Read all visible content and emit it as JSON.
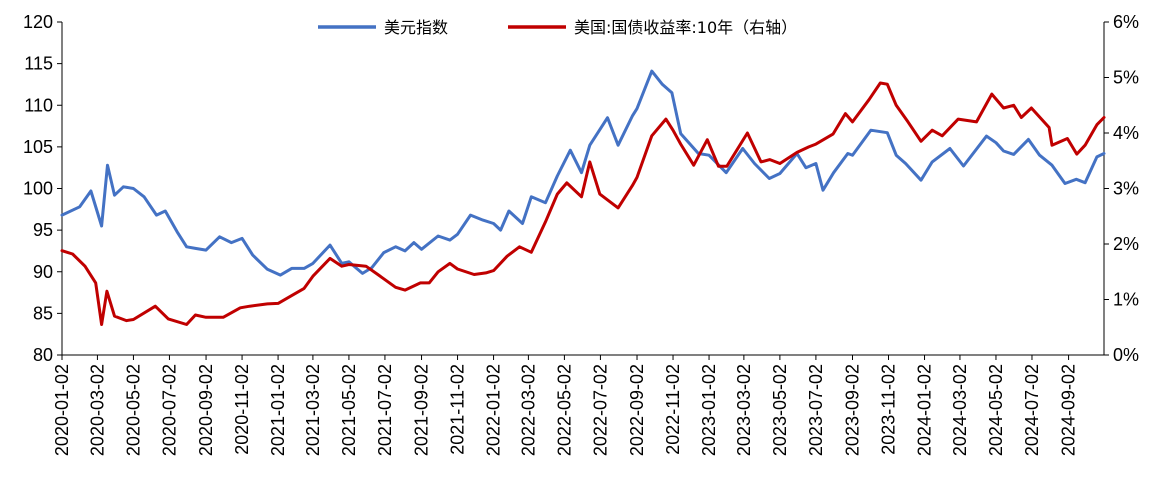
{
  "chart_data": {
    "type": "line",
    "title": "",
    "xlabel": "",
    "ylabel": "",
    "ylim_left": [
      80,
      120
    ],
    "ylim_right": [
      0,
      6
    ],
    "yticks_left": [
      "80",
      "85",
      "90",
      "95",
      "100",
      "105",
      "110",
      "115",
      "120"
    ],
    "yticks_right": [
      "0%",
      "1%",
      "2%",
      "3%",
      "4%",
      "5%",
      "6%"
    ],
    "xticks": [
      "2020-01-02",
      "2020-03-02",
      "2020-05-02",
      "2020-07-02",
      "2020-09-02",
      "2020-11-02",
      "2021-01-02",
      "2021-03-02",
      "2021-05-02",
      "2021-07-02",
      "2021-09-02",
      "2021-11-02",
      "2022-01-02",
      "2022-03-02",
      "2022-05-02",
      "2022-07-02",
      "2022-09-02",
      "2022-11-02",
      "2023-01-02",
      "2023-03-02",
      "2023-05-02",
      "2023-07-02",
      "2023-09-02",
      "2023-11-02",
      "2024-01-02",
      "2024-03-02",
      "2024-05-02",
      "2024-07-02",
      "2024-09-02"
    ],
    "grid": false,
    "legend_position": "top-center",
    "series": [
      {
        "name": "美元指数",
        "axis": "left",
        "color": "#4472C4",
        "x": [
          "2020-01-02",
          "2020-02-01",
          "2020-02-20",
          "2020-03-09",
          "2020-03-19",
          "2020-03-31",
          "2020-04-15",
          "2020-05-02",
          "2020-05-20",
          "2020-06-10",
          "2020-06-25",
          "2020-07-15",
          "2020-07-31",
          "2020-08-15",
          "2020-09-02",
          "2020-09-25",
          "2020-10-15",
          "2020-11-02",
          "2020-11-20",
          "2020-12-15",
          "2021-01-06",
          "2021-01-25",
          "2021-02-15",
          "2021-03-02",
          "2021-03-31",
          "2021-04-20",
          "2021-05-02",
          "2021-05-25",
          "2021-06-10",
          "2021-06-30",
          "2021-07-20",
          "2021-08-05",
          "2021-08-20",
          "2021-09-02",
          "2021-09-30",
          "2021-10-20",
          "2021-11-02",
          "2021-11-24",
          "2021-12-15",
          "2022-01-02",
          "2022-01-14",
          "2022-01-28",
          "2022-02-20",
          "2022-03-07",
          "2022-03-31",
          "2022-04-20",
          "2022-05-12",
          "2022-05-31",
          "2022-06-14",
          "2022-07-14",
          "2022-08-01",
          "2022-08-25",
          "2022-09-02",
          "2022-09-27",
          "2022-10-15",
          "2022-10-31",
          "2022-11-15",
          "2022-12-15",
          "2023-01-02",
          "2023-01-31",
          "2023-02-28",
          "2023-03-20",
          "2023-04-14",
          "2023-05-02",
          "2023-05-31",
          "2023-06-15",
          "2023-07-02",
          "2023-07-14",
          "2023-08-01",
          "2023-08-25",
          "2023-09-02",
          "2023-10-03",
          "2023-10-31",
          "2023-11-15",
          "2023-12-01",
          "2023-12-27",
          "2024-01-15",
          "2024-02-14",
          "2024-03-08",
          "2024-04-16",
          "2024-05-02",
          "2024-05-15",
          "2024-06-01",
          "2024-06-26",
          "2024-07-15",
          "2024-08-05",
          "2024-08-27",
          "2024-09-15",
          "2024-09-30",
          "2024-10-20",
          "2024-11-01"
        ],
        "values": [
          96.8,
          97.8,
          99.7,
          95.5,
          102.8,
          99.2,
          100.2,
          100.0,
          99.0,
          96.8,
          97.3,
          94.8,
          93.0,
          92.8,
          92.6,
          94.2,
          93.5,
          94.0,
          92.0,
          90.3,
          89.6,
          90.4,
          90.4,
          91.0,
          93.2,
          91.0,
          91.2,
          89.8,
          90.5,
          92.3,
          93.0,
          92.5,
          93.5,
          92.7,
          94.3,
          93.8,
          94.5,
          96.8,
          96.2,
          95.8,
          95.0,
          97.3,
          95.8,
          99.0,
          98.3,
          101.5,
          104.6,
          101.9,
          105.2,
          108.5,
          105.2,
          108.7,
          109.6,
          114.1,
          112.5,
          111.5,
          106.6,
          104.2,
          104.0,
          101.9,
          104.8,
          103.0,
          101.2,
          101.8,
          104.2,
          102.5,
          103.0,
          99.8,
          101.9,
          104.2,
          104.0,
          107.0,
          106.7,
          104.0,
          103.0,
          101.0,
          103.2,
          104.8,
          102.7,
          106.3,
          105.5,
          104.5,
          104.1,
          105.9,
          104.0,
          102.8,
          100.6,
          101.1,
          100.7,
          103.8,
          104.2
        ]
      },
      {
        "name": "美国:国债收益率:10年（右轴）",
        "axis": "right",
        "color": "#C00000",
        "x": [
          "2020-01-02",
          "2020-01-20",
          "2020-02-10",
          "2020-02-28",
          "2020-03-09",
          "2020-03-18",
          "2020-03-31",
          "2020-04-20",
          "2020-05-02",
          "2020-06-08",
          "2020-06-30",
          "2020-07-31",
          "2020-08-15",
          "2020-09-02",
          "2020-10-01",
          "2020-10-30",
          "2020-11-15",
          "2020-12-15",
          "2021-01-02",
          "2021-01-25",
          "2021-02-15",
          "2021-03-02",
          "2021-03-31",
          "2021-04-20",
          "2021-05-02",
          "2021-05-31",
          "2021-06-20",
          "2021-07-20",
          "2021-08-05",
          "2021-08-31",
          "2021-09-15",
          "2021-09-30",
          "2021-10-20",
          "2021-11-02",
          "2021-11-30",
          "2021-12-20",
          "2022-01-02",
          "2022-01-25",
          "2022-02-15",
          "2022-03-07",
          "2022-03-31",
          "2022-04-20",
          "2022-05-06",
          "2022-05-31",
          "2022-06-14",
          "2022-07-01",
          "2022-08-01",
          "2022-08-25",
          "2022-09-02",
          "2022-09-27",
          "2022-10-21",
          "2022-11-02",
          "2022-11-15",
          "2022-12-07",
          "2022-12-30",
          "2023-01-18",
          "2023-02-01",
          "2023-03-08",
          "2023-03-31",
          "2023-04-15",
          "2023-05-02",
          "2023-05-31",
          "2023-06-20",
          "2023-07-02",
          "2023-07-31",
          "2023-08-21",
          "2023-09-02",
          "2023-09-30",
          "2023-10-19",
          "2023-10-31",
          "2023-11-15",
          "2023-12-05",
          "2023-12-27",
          "2024-01-15",
          "2024-02-01",
          "2024-02-28",
          "2024-03-30",
          "2024-04-25",
          "2024-05-15",
          "2024-06-01",
          "2024-06-14",
          "2024-07-01",
          "2024-07-31",
          "2024-08-05",
          "2024-08-31",
          "2024-09-16",
          "2024-09-30",
          "2024-10-20",
          "2024-11-01"
        ],
        "values": [
          1.88,
          1.82,
          1.6,
          1.3,
          0.55,
          1.15,
          0.7,
          0.62,
          0.64,
          0.88,
          0.65,
          0.55,
          0.72,
          0.68,
          0.68,
          0.85,
          0.88,
          0.92,
          0.93,
          1.07,
          1.2,
          1.42,
          1.74,
          1.6,
          1.63,
          1.6,
          1.45,
          1.22,
          1.17,
          1.3,
          1.3,
          1.5,
          1.65,
          1.55,
          1.45,
          1.48,
          1.52,
          1.78,
          1.95,
          1.85,
          2.4,
          2.9,
          3.1,
          2.85,
          3.48,
          2.9,
          2.65,
          3.05,
          3.2,
          3.95,
          4.25,
          4.05,
          3.8,
          3.42,
          3.88,
          3.4,
          3.4,
          4.0,
          3.48,
          3.52,
          3.45,
          3.65,
          3.75,
          3.8,
          3.98,
          4.35,
          4.2,
          4.6,
          4.9,
          4.88,
          4.5,
          4.2,
          3.85,
          4.05,
          3.95,
          4.25,
          4.2,
          4.7,
          4.45,
          4.5,
          4.28,
          4.45,
          4.1,
          3.78,
          3.9,
          3.62,
          3.78,
          4.15,
          4.28
        ]
      }
    ]
  }
}
